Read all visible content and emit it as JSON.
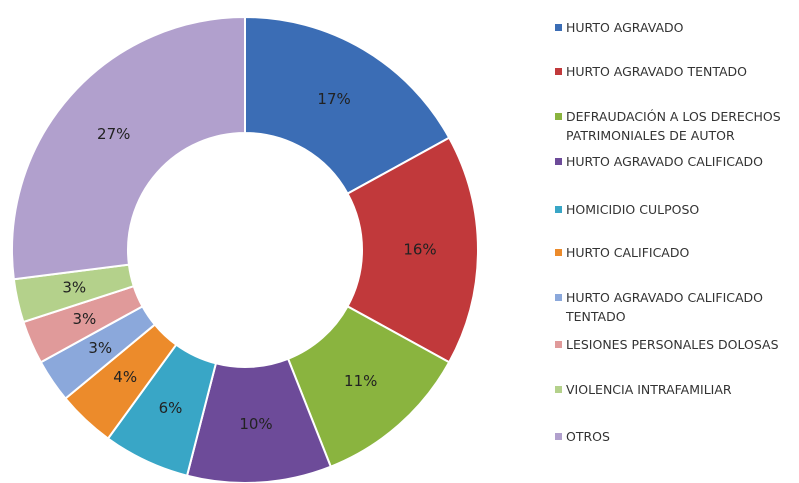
{
  "chart_data": {
    "type": "donut",
    "categories": [
      "HURTO AGRAVADO",
      "HURTO AGRAVADO TENTADO",
      "DEFRAUDACIÓN A LOS DERECHOS\nPATRIMONIALES DE AUTOR",
      "HURTO AGRAVADO CALIFICADO",
      "HOMICIDIO CULPOSO",
      "HURTO CALIFICADO",
      "HURTO AGRAVADO CALIFICADO\nTENTADO",
      "LESIONES PERSONALES DOLOSAS",
      "VIOLENCIA INTRAFAMILIAR",
      "OTROS"
    ],
    "values": [
      17,
      16,
      11,
      10,
      6,
      4,
      3,
      3,
      3,
      27
    ],
    "value_labels": [
      "17%",
      "16%",
      "11%",
      "10%",
      "6%",
      "4%",
      "3%",
      "3%",
      "3%",
      "27%"
    ],
    "colors": [
      "#3b6db5",
      "#c1393b",
      "#8ab43f",
      "#6d4b99",
      "#39a6c6",
      "#ec8b2b",
      "#8ba8db",
      "#e09a9a",
      "#b4d18b",
      "#b1a0cd"
    ],
    "legend": "right"
  }
}
